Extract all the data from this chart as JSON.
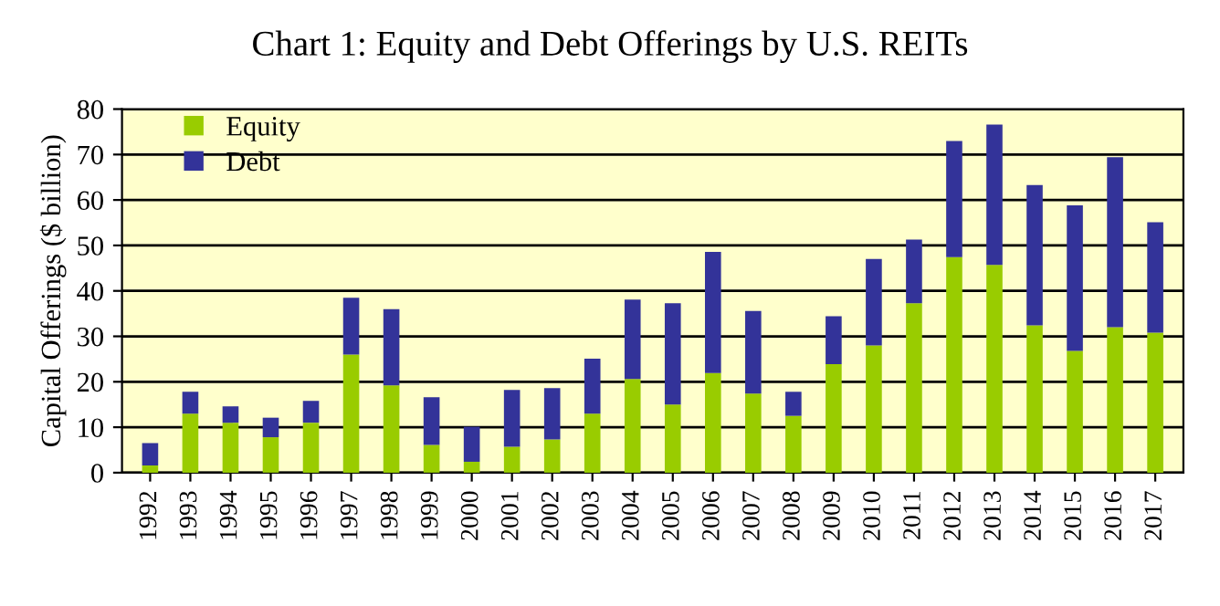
{
  "chart_data": {
    "type": "bar",
    "title": "Chart 1: Equity and Debt Offerings by U.S. REITs",
    "ylabel": "Capital Offerings ($ billion)",
    "categories": [
      "1992",
      "1993",
      "1994",
      "1995",
      "1996",
      "1997",
      "1998",
      "1999",
      "2000",
      "2001",
      "2002",
      "2003",
      "2004",
      "2005",
      "2006",
      "2007",
      "2008",
      "2009",
      "2010",
      "2011",
      "2012",
      "2013",
      "2014",
      "2015",
      "2016",
      "2017"
    ],
    "stacked": true,
    "series": [
      {
        "name": "Equity",
        "color": "#99cc00",
        "values": [
          1.6,
          13,
          11,
          7.8,
          11,
          26,
          19.2,
          6.1,
          2.4,
          5.7,
          7.3,
          13,
          20.6,
          15,
          21.9,
          17.4,
          12.5,
          23.9,
          28,
          37.3,
          47.4,
          45.7,
          32.4,
          26.8,
          32,
          30.8
        ]
      },
      {
        "name": "Debt",
        "color": "#333399",
        "values": [
          4.9,
          4.8,
          3.6,
          4.3,
          4.8,
          12.5,
          16.8,
          10.5,
          7.7,
          12.5,
          11.3,
          12.1,
          17.5,
          22.3,
          26.7,
          18.2,
          5.3,
          10.5,
          19,
          14,
          25.6,
          30.9,
          30.9,
          32,
          37.4,
          24.3
        ]
      }
    ],
    "ylim": [
      0,
      80
    ],
    "yticks": [
      0,
      10,
      20,
      30,
      40,
      50,
      60,
      70,
      80
    ],
    "grid": "y",
    "legend": "top left"
  }
}
